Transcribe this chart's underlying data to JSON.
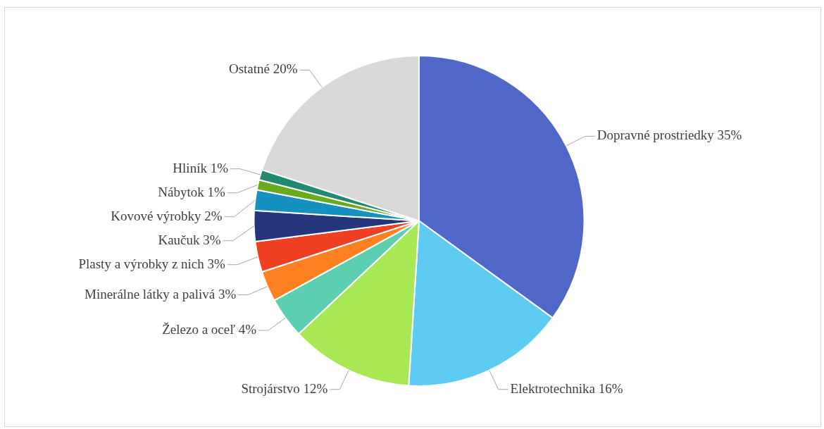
{
  "chart_data": {
    "type": "pie",
    "categories": [
      "Dopravné prostriedky",
      "Elektrotechnika",
      "Strojárstvo",
      "Železo a oceľ",
      "Minerálne látky a palivá",
      "Plasty a výrobky z nich",
      "Kaučuk",
      "Kovové výrobky",
      "Nábytok",
      "Hliník",
      "Ostatné"
    ],
    "values": [
      35,
      16,
      12,
      4,
      3,
      3,
      3,
      2,
      1,
      1,
      20
    ],
    "value_labels": [
      "35%",
      "16%",
      "12%",
      "4%",
      "3%",
      "3%",
      "3%",
      "2%",
      "1%",
      "1%",
      "20%"
    ],
    "colors": [
      "#4f67c8",
      "#5ecbf2",
      "#a8e854",
      "#5ccfb0",
      "#ff8020",
      "#ef4023",
      "#25367c",
      "#1590c0",
      "#6aaa1e",
      "#218a6e",
      "#d9d9d9"
    ],
    "legend": false
  }
}
